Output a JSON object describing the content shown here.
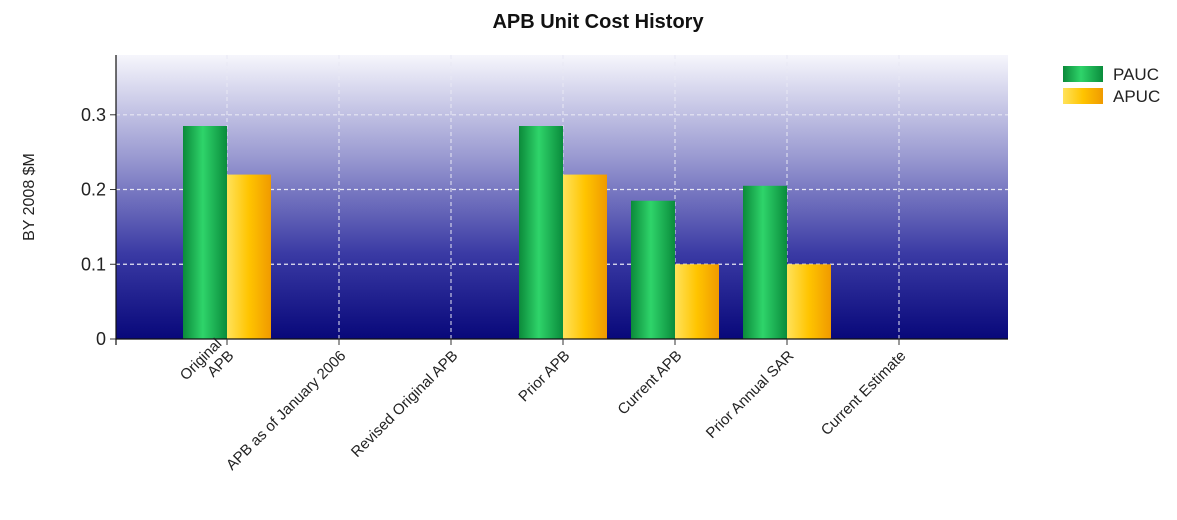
{
  "chart_data": {
    "type": "bar",
    "title": "APB Unit Cost History",
    "xlabel": "",
    "ylabel": "BY 2008 $M",
    "ylim": [
      0,
      0.38
    ],
    "yticks": [
      0,
      0.1,
      0.2,
      0.3
    ],
    "ytick_labels": [
      "0",
      "0.1",
      "0.2",
      "0.3"
    ],
    "categories": [
      [
        "Original",
        "APB"
      ],
      [
        "APB as of January 2006"
      ],
      [
        "Revised Original APB"
      ],
      [
        "Prior APB"
      ],
      [
        "Current APB"
      ],
      [
        "Prior Annual SAR"
      ],
      [
        "Current Estimate"
      ]
    ],
    "series": [
      {
        "name": "PAUC",
        "color": "#0fa84a",
        "values": [
          0.285,
          null,
          null,
          0.285,
          0.185,
          0.205,
          null
        ]
      },
      {
        "name": "APUC",
        "color": "#ffc000",
        "values": [
          0.22,
          null,
          null,
          0.22,
          0.1,
          0.1,
          null
        ]
      }
    ],
    "grid": true,
    "legend_position": "top-right",
    "background": {
      "top": "#f4f4fb",
      "bottom": "#0a0a78"
    }
  }
}
